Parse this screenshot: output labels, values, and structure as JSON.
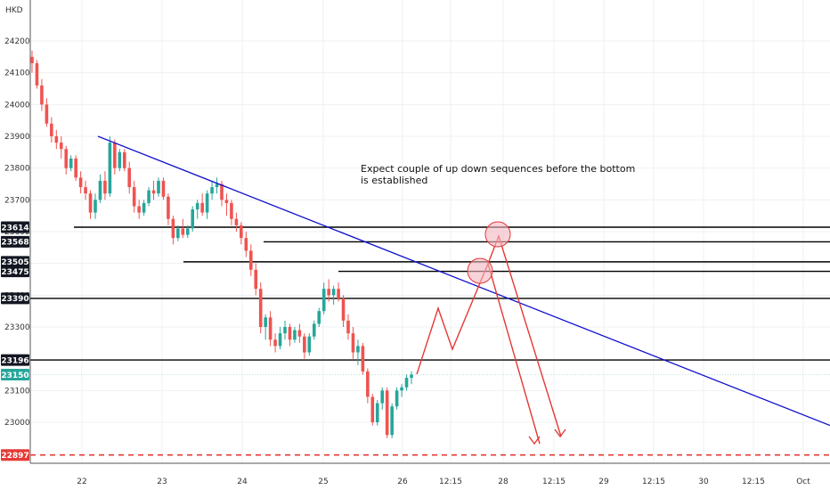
{
  "chart_data": {
    "type": "candlestick",
    "currency": "HKD",
    "ylim": [
      22860,
      24260
    ],
    "y_ticks": [
      24200,
      24100,
      24000,
      23900,
      23800,
      23700,
      23600,
      23500,
      23400,
      23300,
      23100,
      23000
    ],
    "x_tick_labels": [
      "22",
      "23",
      "24",
      "25",
      "26",
      "12:15",
      "28",
      "12:15",
      "29",
      "12:15",
      "30",
      "12:15",
      "Oct"
    ],
    "annotation": "Expect couple of up down sequences before the bottom is established",
    "price_levels": [
      {
        "label": "23614",
        "value": 23614,
        "style": "black-line"
      },
      {
        "label": "23568",
        "value": 23568,
        "style": "black-line"
      },
      {
        "label": "23505",
        "value": 23505,
        "style": "black-line"
      },
      {
        "label": "23475",
        "value": 23475,
        "style": "black-line"
      },
      {
        "label": "23390",
        "value": 23390,
        "style": "black-line"
      },
      {
        "label": "23196",
        "value": 23196,
        "style": "black-line"
      },
      {
        "label": "23150",
        "value": 23150,
        "style": "current-price"
      },
      {
        "label": "22897",
        "value": 22897,
        "style": "red-dashed"
      }
    ],
    "candles": [
      [
        24150,
        24170,
        24100,
        24130
      ],
      [
        24130,
        24140,
        24050,
        24060
      ],
      [
        24060,
        24080,
        23980,
        24000
      ],
      [
        24000,
        24020,
        23930,
        23940
      ],
      [
        23940,
        23960,
        23880,
        23900
      ],
      [
        23900,
        23920,
        23860,
        23880
      ],
      [
        23880,
        23900,
        23830,
        23860
      ],
      [
        23860,
        23870,
        23780,
        23800
      ],
      [
        23800,
        23840,
        23790,
        23830
      ],
      [
        23830,
        23840,
        23760,
        23770
      ],
      [
        23770,
        23790,
        23720,
        23740
      ],
      [
        23740,
        23760,
        23700,
        23720
      ],
      [
        23720,
        23730,
        23640,
        23660
      ],
      [
        23660,
        23720,
        23640,
        23700
      ],
      [
        23700,
        23780,
        23690,
        23760
      ],
      [
        23760,
        23790,
        23700,
        23720
      ],
      [
        23720,
        23900,
        23710,
        23880
      ],
      [
        23880,
        23890,
        23780,
        23800
      ],
      [
        23800,
        23860,
        23790,
        23850
      ],
      [
        23850,
        23860,
        23790,
        23800
      ],
      [
        23800,
        23820,
        23720,
        23740
      ],
      [
        23740,
        23760,
        23660,
        23680
      ],
      [
        23680,
        23700,
        23640,
        23660
      ],
      [
        23660,
        23700,
        23650,
        23690
      ],
      [
        23690,
        23740,
        23680,
        23730
      ],
      [
        23730,
        23760,
        23700,
        23720
      ],
      [
        23720,
        23770,
        23710,
        23760
      ],
      [
        23760,
        23770,
        23700,
        23710
      ],
      [
        23710,
        23720,
        23620,
        23640
      ],
      [
        23640,
        23650,
        23560,
        23580
      ],
      [
        23580,
        23620,
        23570,
        23610
      ],
      [
        23610,
        23640,
        23580,
        23590
      ],
      [
        23590,
        23620,
        23580,
        23610
      ],
      [
        23610,
        23680,
        23600,
        23670
      ],
      [
        23670,
        23700,
        23640,
        23690
      ],
      [
        23690,
        23720,
        23650,
        23660
      ],
      [
        23660,
        23730,
        23640,
        23720
      ],
      [
        23720,
        23760,
        23700,
        23740
      ],
      [
        23740,
        23770,
        23720,
        23750
      ],
      [
        23750,
        23760,
        23680,
        23700
      ],
      [
        23700,
        23720,
        23650,
        23690
      ],
      [
        23690,
        23700,
        23620,
        23640
      ],
      [
        23640,
        23660,
        23600,
        23620
      ],
      [
        23620,
        23630,
        23560,
        23580
      ],
      [
        23580,
        23600,
        23520,
        23540
      ],
      [
        23540,
        23560,
        23460,
        23480
      ],
      [
        23480,
        23500,
        23400,
        23420
      ],
      [
        23420,
        23440,
        23280,
        23300
      ],
      [
        23300,
        23340,
        23260,
        23330
      ],
      [
        23330,
        23350,
        23240,
        23260
      ],
      [
        23260,
        23280,
        23220,
        23240
      ],
      [
        23240,
        23300,
        23230,
        23280
      ],
      [
        23280,
        23320,
        23260,
        23300
      ],
      [
        23300,
        23310,
        23240,
        23260
      ],
      [
        23260,
        23300,
        23250,
        23290
      ],
      [
        23290,
        23310,
        23250,
        23270
      ],
      [
        23270,
        23280,
        23200,
        23220
      ],
      [
        23220,
        23280,
        23210,
        23270
      ],
      [
        23270,
        23320,
        23260,
        23310
      ],
      [
        23310,
        23360,
        23300,
        23350
      ],
      [
        23350,
        23440,
        23340,
        23420
      ],
      [
        23420,
        23450,
        23380,
        23400
      ],
      [
        23400,
        23430,
        23370,
        23420
      ],
      [
        23420,
        23440,
        23380,
        23390
      ],
      [
        23390,
        23400,
        23300,
        23320
      ],
      [
        23320,
        23340,
        23260,
        23280
      ],
      [
        23280,
        23300,
        23200,
        23220
      ],
      [
        23220,
        23260,
        23180,
        23240
      ],
      [
        23240,
        23250,
        23150,
        23160
      ],
      [
        23160,
        23170,
        23060,
        23080
      ],
      [
        23080,
        23090,
        22990,
        23000
      ],
      [
        23000,
        23070,
        22990,
        23060
      ],
      [
        23060,
        23110,
        23040,
        23100
      ],
      [
        23100,
        23110,
        22950,
        22960
      ],
      [
        22960,
        23060,
        22950,
        23050
      ],
      [
        23050,
        23110,
        23040,
        23100
      ],
      [
        23100,
        23120,
        23080,
        23110
      ],
      [
        23110,
        23150,
        23100,
        23140
      ],
      [
        23140,
        23160,
        23120,
        23150
      ]
    ]
  }
}
